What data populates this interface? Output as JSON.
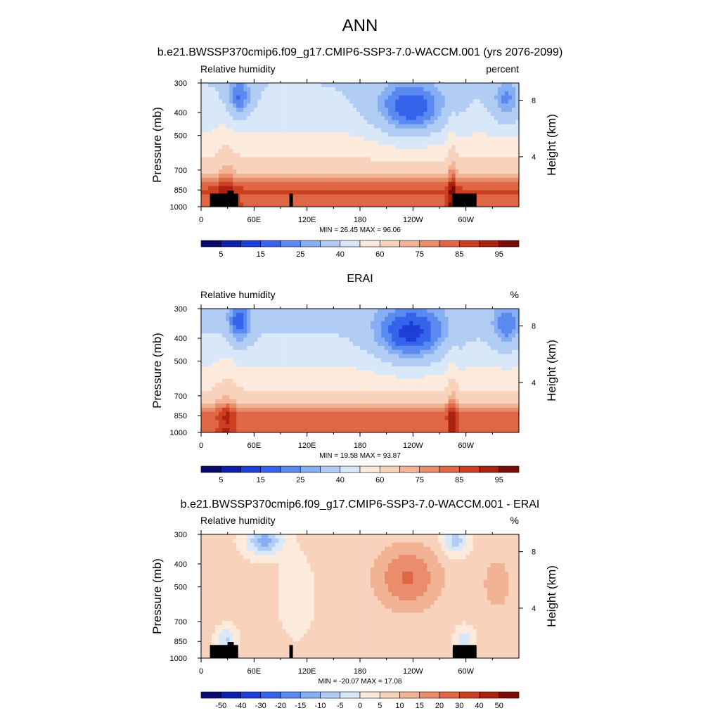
{
  "title": "ANN",
  "colors": {
    "rh_scale": [
      "#08086e",
      "#0d1fae",
      "#1c3fd8",
      "#3564ea",
      "#5a8af0",
      "#86aef2",
      "#b2cdf4",
      "#d9e8f8",
      "#fcebdc",
      "#f8d2bb",
      "#f2b294",
      "#ea8d6c",
      "#df6745",
      "#cc3f22",
      "#a9210f",
      "#7b0c05"
    ],
    "diff_scale": [
      "#08086e",
      "#0d1fae",
      "#1c3fd8",
      "#3564ea",
      "#5a8af0",
      "#86aef2",
      "#b2cdf4",
      "#d9e8f8",
      "#fcebdc",
      "#f8d2bb",
      "#f2b294",
      "#ea8d6c",
      "#df6745",
      "#cc3f22",
      "#a9210f",
      "#7b0c05"
    ],
    "topography": "#000000"
  },
  "chart_data": [
    {
      "type": "heatmap",
      "title": "b.e21.BWSSP370cmip6.f09_g17.CMIP6-SSP3-7.0-WACCM.001 (yrs 2076-2099)",
      "variable": "Relative humidity",
      "units": "percent",
      "ylabel": "Pressure (mb)",
      "ylabel_right": "Height (km)",
      "x_ticks": [
        "0",
        "60E",
        "120E",
        "180",
        "120W",
        "60W"
      ],
      "xlim": [
        0,
        360
      ],
      "y_ticks": [
        "300",
        "400",
        "500",
        "700",
        "850",
        "1000"
      ],
      "y_scale": "log",
      "ylim": [
        1000,
        300
      ],
      "height_ticks": [
        "8",
        "4"
      ],
      "stats": "MIN =  26.45  MAX =  96.06",
      "colorbar_labels": [
        "5",
        "15",
        "25",
        "40",
        "60",
        "75",
        "85",
        "95"
      ],
      "colorbar_levels": [
        0,
        5,
        10,
        15,
        20,
        25,
        30,
        40,
        50,
        60,
        70,
        75,
        80,
        85,
        90,
        95,
        100
      ],
      "min": 26.45,
      "max": 96.06
    },
    {
      "type": "heatmap",
      "title": "ERAI",
      "variable": "Relative humidity",
      "units": "%",
      "ylabel": "Pressure (mb)",
      "ylabel_right": "Height (km)",
      "x_ticks": [
        "0",
        "60E",
        "120E",
        "180",
        "120W",
        "60W"
      ],
      "xlim": [
        0,
        360
      ],
      "y_ticks": [
        "300",
        "400",
        "500",
        "700",
        "850",
        "1000"
      ],
      "y_scale": "log",
      "ylim": [
        1000,
        300
      ],
      "height_ticks": [
        "8",
        "4"
      ],
      "stats": "MIN =  19.58  MAX =  93.87",
      "colorbar_labels": [
        "5",
        "15",
        "25",
        "40",
        "60",
        "75",
        "85",
        "95"
      ],
      "min": 19.58,
      "max": 93.87
    },
    {
      "type": "heatmap",
      "title": "b.e21.BWSSP370cmip6.f09_g17.CMIP6-SSP3-7.0-WACCM.001 - ERAI",
      "variable": "Relative humidity",
      "units": "%",
      "ylabel": "Pressure (mb)",
      "ylabel_right": "Height (km)",
      "x_ticks": [
        "0",
        "60E",
        "120E",
        "180",
        "120W",
        "60W"
      ],
      "xlim": [
        0,
        360
      ],
      "y_ticks": [
        "300",
        "400",
        "500",
        "700",
        "850",
        "1000"
      ],
      "y_scale": "log",
      "ylim": [
        1000,
        300
      ],
      "height_ticks": [
        "8",
        "4"
      ],
      "stats": "MIN = -20.07  MAX =  17.08",
      "colorbar_labels": [
        "-50",
        "-40",
        "-30",
        "-20",
        "-15",
        "-10",
        "-5",
        "0",
        "5",
        "10",
        "15",
        "20",
        "30",
        "40",
        "50"
      ],
      "min": -20.07,
      "max": 17.08
    }
  ]
}
